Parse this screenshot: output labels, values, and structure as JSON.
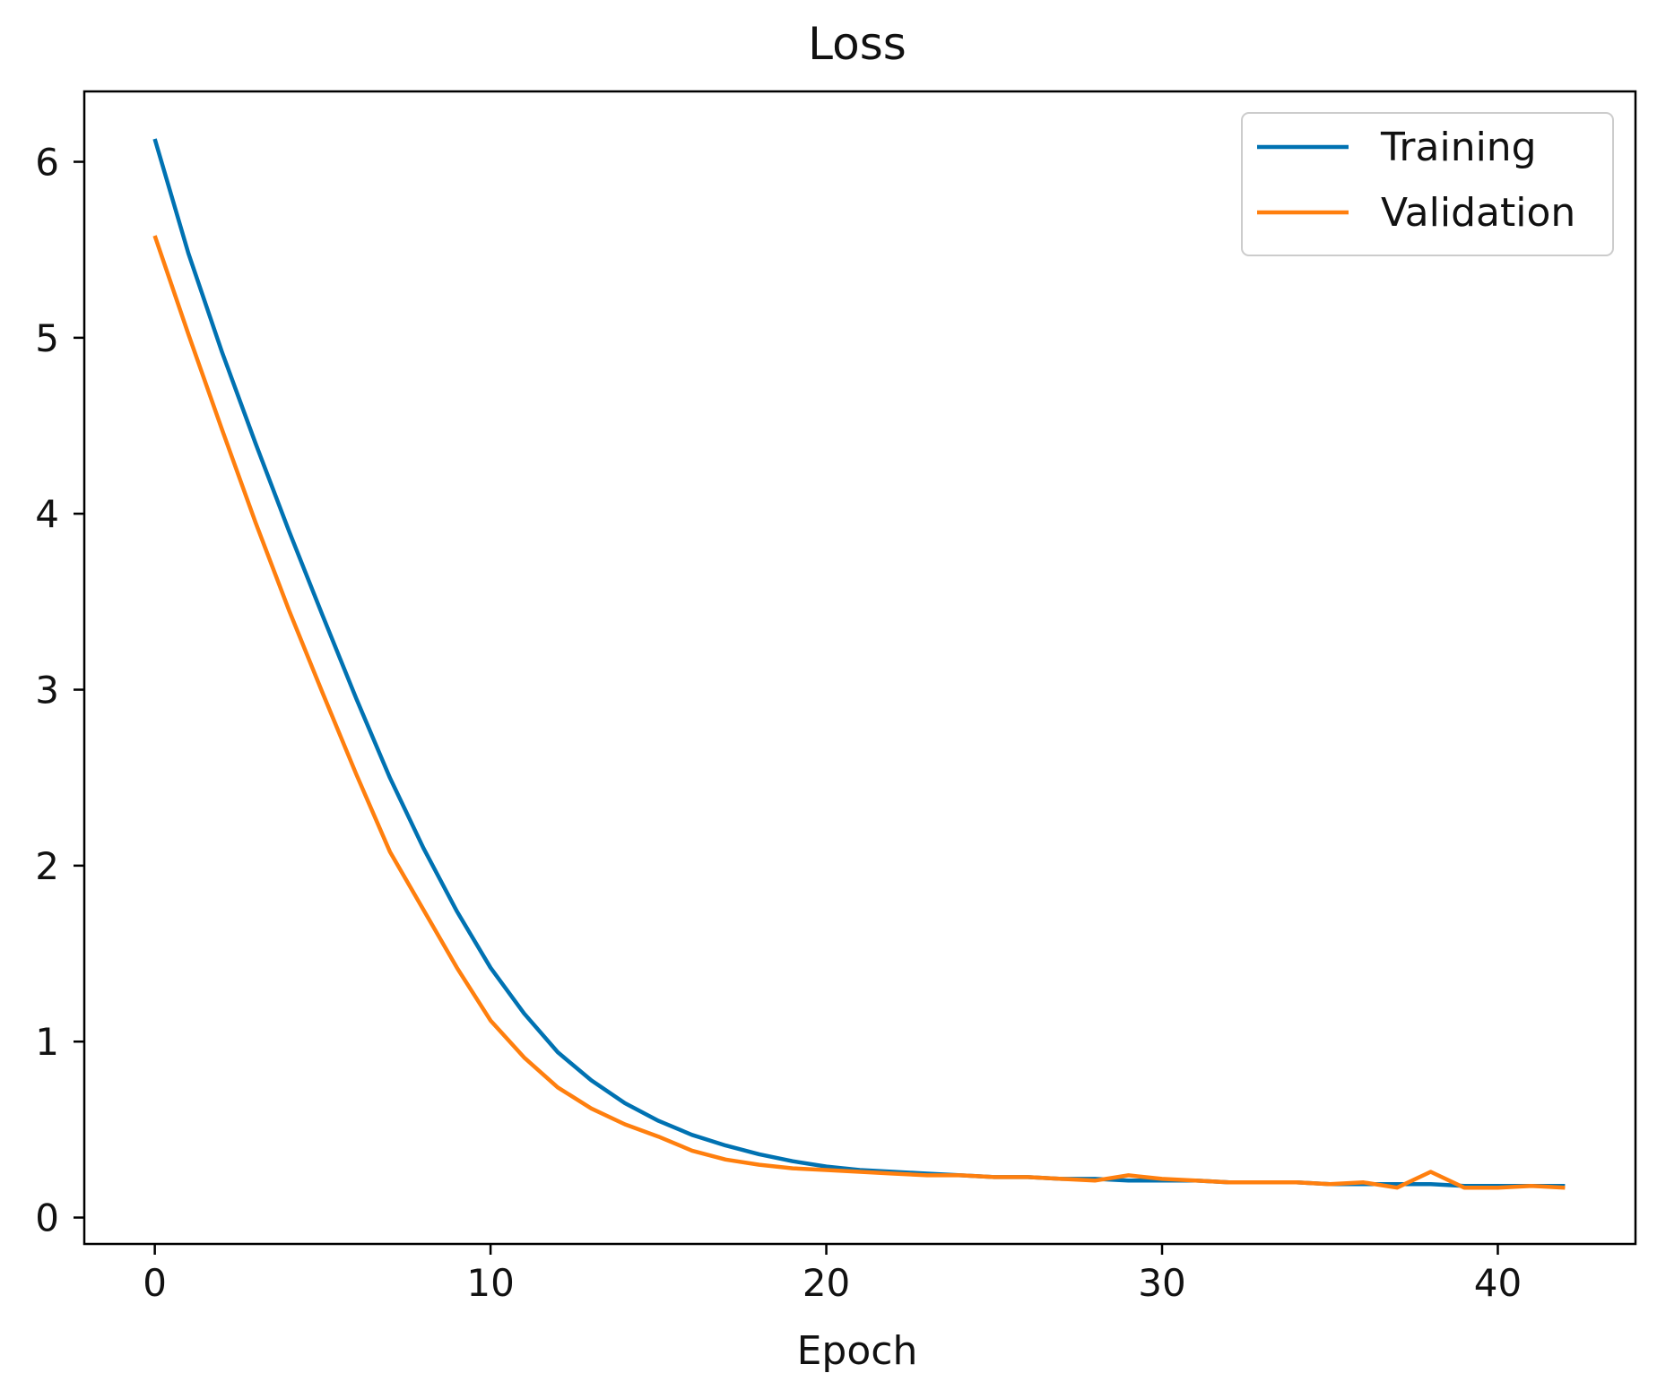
{
  "chart_data": {
    "type": "line",
    "title": "Loss",
    "xlabel": "Epoch",
    "ylabel": "",
    "xlim": [
      -2.1,
      44.1
    ],
    "ylim": [
      -0.15,
      6.4
    ],
    "x_ticks": [
      0,
      10,
      20,
      30,
      40
    ],
    "x_tick_labels": [
      "0",
      "10",
      "20",
      "30",
      "40"
    ],
    "y_ticks": [
      0,
      1,
      2,
      3,
      4,
      5,
      6
    ],
    "y_tick_labels": [
      "0",
      "1",
      "2",
      "3",
      "4",
      "5",
      "6"
    ],
    "grid": false,
    "legend": {
      "position": "top-right",
      "entries": [
        "Training",
        "Validation"
      ]
    },
    "x": [
      0,
      1,
      2,
      3,
      4,
      5,
      6,
      7,
      8,
      9,
      10,
      11,
      12,
      13,
      14,
      15,
      16,
      17,
      18,
      19,
      20,
      21,
      22,
      23,
      24,
      25,
      26,
      27,
      28,
      29,
      30,
      31,
      32,
      33,
      34,
      35,
      36,
      37,
      38,
      39,
      40,
      41,
      42
    ],
    "series": [
      {
        "name": "Training",
        "color": "#0072B2",
        "values": [
          6.13,
          5.48,
          4.92,
          4.4,
          3.9,
          3.42,
          2.95,
          2.5,
          2.1,
          1.74,
          1.42,
          1.16,
          0.94,
          0.78,
          0.65,
          0.55,
          0.47,
          0.41,
          0.36,
          0.32,
          0.29,
          0.27,
          0.26,
          0.25,
          0.24,
          0.23,
          0.23,
          0.22,
          0.22,
          0.21,
          0.21,
          0.21,
          0.2,
          0.2,
          0.2,
          0.19,
          0.19,
          0.19,
          0.19,
          0.18,
          0.18,
          0.18,
          0.18
        ]
      },
      {
        "name": "Validation",
        "color": "#FF7F0E",
        "values": [
          5.58,
          5.02,
          4.48,
          3.95,
          3.45,
          2.98,
          2.52,
          2.08,
          1.75,
          1.42,
          1.12,
          0.91,
          0.74,
          0.62,
          0.53,
          0.46,
          0.38,
          0.33,
          0.3,
          0.28,
          0.27,
          0.26,
          0.25,
          0.24,
          0.24,
          0.23,
          0.23,
          0.22,
          0.21,
          0.24,
          0.22,
          0.21,
          0.2,
          0.2,
          0.2,
          0.19,
          0.2,
          0.17,
          0.26,
          0.17,
          0.17,
          0.18,
          0.17
        ]
      }
    ]
  }
}
